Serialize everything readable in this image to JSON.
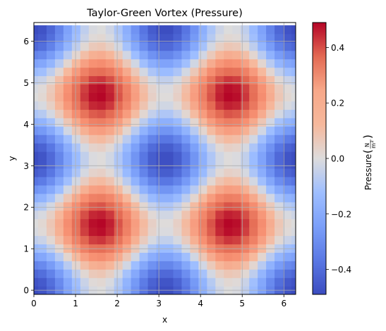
{
  "chart_data": {
    "type": "heatmap",
    "title": "Taylor-Green Vortex (Pressure)",
    "xlabel": "x",
    "ylabel": "y",
    "xlim": [
      0,
      6.2832
    ],
    "ylim": [
      -0.1,
      6.45
    ],
    "x_ticks": [
      0,
      1,
      2,
      3,
      4,
      5,
      6
    ],
    "y_ticks": [
      0,
      1,
      2,
      3,
      4,
      5,
      6
    ],
    "x_tick_labels": [
      "0",
      "1",
      "2",
      "3",
      "4",
      "5",
      "6"
    ],
    "y_tick_labels": [
      "0",
      "1",
      "2",
      "3",
      "4",
      "5",
      "6"
    ],
    "grid": true,
    "grid_size": 32,
    "field": "p = 0.5 * (cos(2x) + cos(2y)) / 2, rendered as -0.25*(cos 2x + cos 2y)",
    "value_range": [
      -0.5,
      0.5
    ],
    "colormap": "coolwarm",
    "colorbar": {
      "label": "Pressure",
      "unit_num": "N",
      "unit_den": "m",
      "unit_den_exp": "2",
      "ticks": [
        0.4,
        0.2,
        0.0,
        -0.2,
        -0.4
      ],
      "tick_labels": [
        "0.4",
        "0.2",
        "0.0",
        "−0.2",
        "−0.4"
      ]
    }
  }
}
